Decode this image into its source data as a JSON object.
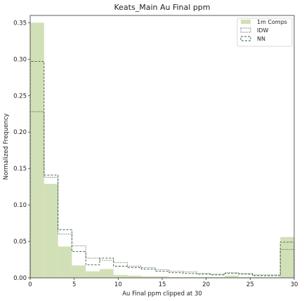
{
  "chart_data": {
    "type": "bar",
    "title": "Keats_Main Au Final ppm",
    "xlabel": "Au Final ppm clipped at 30",
    "ylabel": "Normalized Frequency",
    "xlim": [
      0,
      30
    ],
    "ylim": [
      0,
      0.36
    ],
    "xticks": [
      0,
      5,
      10,
      15,
      20,
      25,
      30
    ],
    "xtick_labels": [
      "0",
      "5",
      "10",
      "15",
      "20",
      "25",
      "30"
    ],
    "yticks": [
      0.0,
      0.05,
      0.1,
      0.15,
      0.2,
      0.25,
      0.3,
      0.35
    ],
    "ytick_labels": [
      "0.00",
      "0.05",
      "0.10",
      "0.15",
      "0.20",
      "0.25",
      "0.30",
      "0.35"
    ],
    "bin_edges": [
      0,
      1.58,
      3.16,
      4.74,
      6.32,
      7.89,
      9.47,
      11.05,
      12.63,
      14.21,
      15.79,
      17.37,
      18.95,
      20.53,
      22.11,
      23.68,
      25.26,
      26.84,
      28.42,
      30
    ],
    "legend_position": "top-right",
    "grid": false,
    "series": [
      {
        "name": "1m Comps",
        "style": "filled",
        "color": "#d2e0b7",
        "values": [
          0.35,
          0.129,
          0.043,
          0.017,
          0.009,
          0.012,
          0.004,
          0.003,
          0.002,
          0.002,
          0.001,
          0.001,
          0.001,
          0.001,
          0.003,
          0.001,
          0.001,
          0.001,
          0.056
        ]
      },
      {
        "name": "IDW",
        "style": "dotted",
        "color": "#555555",
        "values": [
          0.228,
          0.138,
          0.06,
          0.044,
          0.027,
          0.024,
          0.021,
          0.016,
          0.014,
          0.011,
          0.009,
          0.008,
          0.006,
          0.005,
          0.007,
          0.006,
          0.004,
          0.004,
          0.039
        ]
      },
      {
        "name": "NN",
        "style": "dashed",
        "color": "#2e5a38",
        "values": [
          0.297,
          0.141,
          0.066,
          0.036,
          0.018,
          0.027,
          0.016,
          0.014,
          0.012,
          0.009,
          0.007,
          0.006,
          0.005,
          0.004,
          0.006,
          0.005,
          0.003,
          0.003,
          0.049
        ]
      }
    ]
  }
}
